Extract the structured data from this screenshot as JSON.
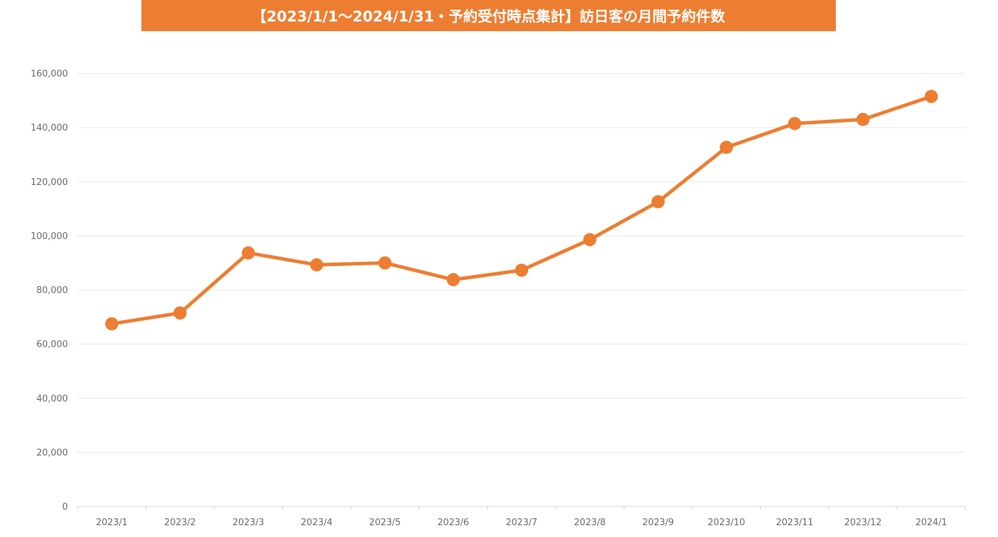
{
  "chart_data": {
    "type": "line",
    "title": "【2023/1/1～2024/1/31・予約受付時点集計】訪日客の月間予約件数",
    "categories": [
      "2023/1",
      "2023/2",
      "2023/3",
      "2023/4",
      "2023/5",
      "2023/6",
      "2023/7",
      "2023/8",
      "2023/9",
      "2023/10",
      "2023/11",
      "2023/12",
      "2024/1"
    ],
    "series": [
      {
        "values": [
          67500,
          71500,
          93700,
          89300,
          90000,
          83800,
          87300,
          98600,
          112600,
          132700,
          141500,
          143000,
          151500
        ]
      }
    ],
    "y_ticks": [
      "0",
      "20,000",
      "40,000",
      "60,000",
      "80,000",
      "100,000",
      "120,000",
      "140,000",
      "160,000"
    ],
    "ylim": [
      0,
      160000
    ],
    "xlabel": "",
    "ylabel": "",
    "grid": "horizontal",
    "legend": "none",
    "colors": {
      "line": "#ED7D31",
      "banner": "#ED7D31",
      "grid": "#E6E6E6",
      "axis_text": "#666666"
    }
  }
}
